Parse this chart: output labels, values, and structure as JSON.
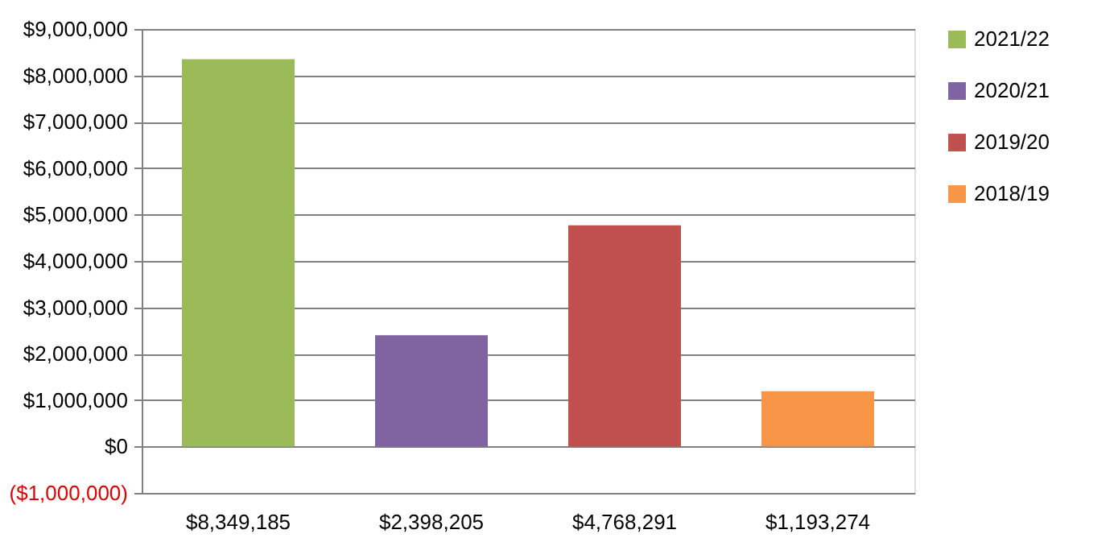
{
  "chart_data": {
    "type": "bar",
    "categories": [
      "$8,349,185",
      "$2,398,205",
      "$4,768,291",
      "$1,193,274"
    ],
    "series": [
      {
        "name": "2021/22",
        "color": "#9bbb59",
        "values": [
          8349185,
          null,
          null,
          null
        ]
      },
      {
        "name": "2020/21",
        "color": "#8064a2",
        "values": [
          null,
          2398205,
          null,
          null
        ]
      },
      {
        "name": "2019/20",
        "color": "#c0504d",
        "values": [
          null,
          null,
          4768291,
          null
        ]
      },
      {
        "name": "2018/19",
        "color": "#f79646",
        "values": [
          null,
          null,
          null,
          1193274
        ]
      }
    ],
    "ylim": [
      -1000000,
      9000000
    ],
    "yticks": [
      {
        "value": -1000000,
        "label": "($1,000,000)"
      },
      {
        "value": 0,
        "label": "$0"
      },
      {
        "value": 1000000,
        "label": "$1,000,000"
      },
      {
        "value": 2000000,
        "label": "$2,000,000"
      },
      {
        "value": 3000000,
        "label": "$3,000,000"
      },
      {
        "value": 4000000,
        "label": "$4,000,000"
      },
      {
        "value": 5000000,
        "label": "$5,000,000"
      },
      {
        "value": 6000000,
        "label": "$6,000,000"
      },
      {
        "value": 7000000,
        "label": "$7,000,000"
      },
      {
        "value": 8000000,
        "label": "$8,000,000"
      },
      {
        "value": 9000000,
        "label": "$9,000,000"
      }
    ],
    "grid": "y",
    "legend": "right"
  }
}
